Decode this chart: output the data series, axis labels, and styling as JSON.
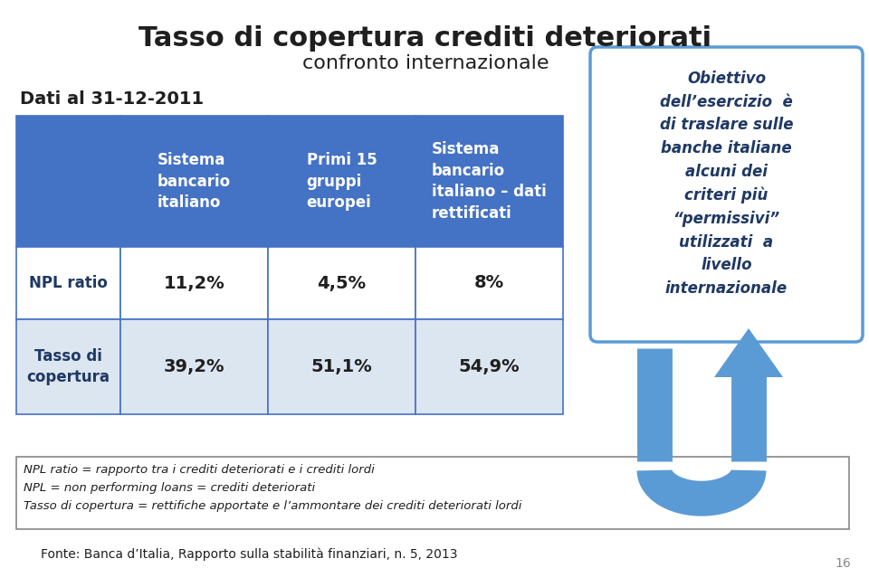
{
  "title1": "Tasso di copertura crediti deteriorati",
  "title2": "confronto internazionale",
  "subtitle": "Dati al 31-12-2011",
  "col_headers": [
    "Sistema\nbancario\nitaliano",
    "Primi 15\ngruppi\neuropei",
    "Sistema\nbancario\nitaliano – dati\nrettificati"
  ],
  "row_headers": [
    "NPL ratio",
    "Tasso di\ncopertura"
  ],
  "data": [
    [
      "11,2%",
      "4,5%",
      "8%"
    ],
    [
      "39,2%",
      "51,1%",
      "54,9%"
    ]
  ],
  "header_bg": "#4472C4",
  "header_text": "#FFFFFF",
  "row1_bg": "#FFFFFF",
  "row2_bg": "#DCE6F1",
  "row_header_text": "#1F3864",
  "table_border": "#4472C4",
  "obiettivo_bg": "#FFFFFF",
  "obiettivo_border": "#5B9BD5",
  "obiettivo_text": "Obiettivo\ndell’esercizio  è\ndi traslare sulle\nbanche italiane\nalcuni dei\ncriteri più\n“permissivi”\nutilizzati  a\nlivello\ninternazionale",
  "obiettivo_color": "#1F3864",
  "footnote_line1": "NPL ratio = rapporto tra i crediti deteriorati e i crediti lordi",
  "footnote_line2": "NPL = non performing loans = crediti deteriorati",
  "footnote_line3": "Tasso di copertura = rettifiche apportate e l’ammontare dei crediti deteriorati lordi",
  "source": "Fonte: Banca d’Italia, Rapporto sulla stabilità finanziari, n. 5, 2013",
  "page_num": "16",
  "bg_color": "#FFFFFF",
  "arrow_color": "#5B9BD5",
  "arrow_dark": "#2E75B6"
}
